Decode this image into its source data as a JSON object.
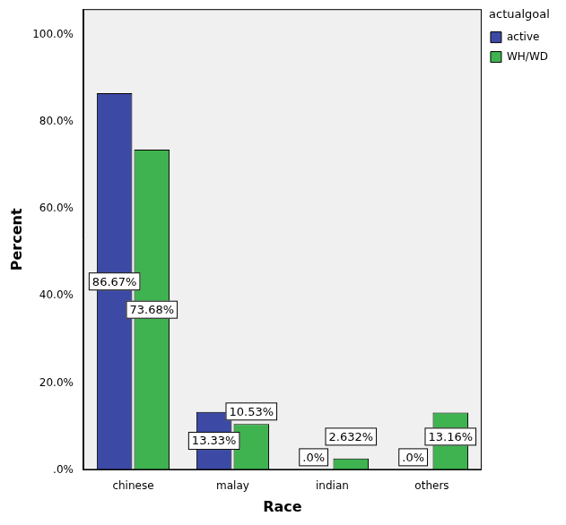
{
  "chart_data": {
    "type": "bar",
    "x_label": "Race",
    "y_label": "Percent",
    "legend_title": "actualgoal",
    "categories": [
      "chinese",
      "malay",
      "indian",
      "others"
    ],
    "series": [
      {
        "name": "active",
        "color": "#3c4aa5",
        "values": [
          86.67,
          13.33,
          0,
          0
        ],
        "value_labels": [
          "86.67%",
          "13.33%",
          ".0%",
          ".0%"
        ]
      },
      {
        "name": "WH/WD",
        "color": "#3fb34f",
        "values": [
          73.68,
          10.53,
          2.632,
          13.16
        ],
        "value_labels": [
          "73.68%",
          "10.53%",
          "2.632%",
          "13.16%"
        ]
      }
    ],
    "ylim": [
      0,
      106
    ],
    "yticks": [
      {
        "value": 0,
        "label": ".0%"
      },
      {
        "value": 20,
        "label": "20.0%"
      },
      {
        "value": 40,
        "label": "40.0%"
      },
      {
        "value": 60,
        "label": "60.0%"
      },
      {
        "value": 80,
        "label": "80.0%"
      },
      {
        "value": 100,
        "label": "100.0%"
      }
    ],
    "grid": false,
    "legend": "right",
    "data_labels": true
  }
}
